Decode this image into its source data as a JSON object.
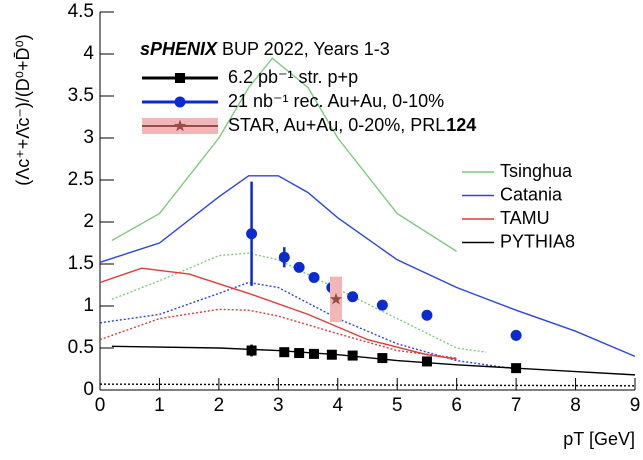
{
  "chart_data": {
    "type": "scatter",
    "title_bold": "sPHENIX",
    "title": "BUP 2022, Years 1-3",
    "x_label": "pT [GeV]",
    "y_label": "(Λc⁺+Λ̄c⁻)/(D⁰+D̄⁰)",
    "xlim": [
      0,
      9
    ],
    "ylim": [
      0,
      4.5
    ],
    "xticks": [
      0,
      1,
      2,
      3,
      4,
      5,
      6,
      7,
      8,
      9
    ],
    "yticks": [
      0,
      0.5,
      1,
      1.5,
      2,
      2.5,
      3,
      3.5,
      4,
      4.5
    ],
    "series": [
      {
        "name": "6.2 pb⁻¹ str. p+p",
        "color": "#000000",
        "marker": "square",
        "x": [
          2.55,
          3.1,
          3.35,
          3.6,
          3.9,
          4.25,
          4.75,
          5.5,
          7.0
        ],
        "values": [
          0.47,
          0.45,
          0.44,
          0.43,
          0.42,
          0.41,
          0.38,
          0.34,
          0.26
        ],
        "errors": [
          0.07,
          null,
          null,
          null,
          null,
          null,
          null,
          null,
          null
        ]
      },
      {
        "name": "21 nb⁻¹ rec. Au+Au, 0-10%",
        "color": "#0a2bd0",
        "marker": "circle",
        "x": [
          2.55,
          3.1,
          3.35,
          3.6,
          3.9,
          4.25,
          4.75,
          5.5,
          7.0
        ],
        "values": [
          1.86,
          1.58,
          1.46,
          1.34,
          1.22,
          1.11,
          1.01,
          0.89,
          0.65
        ],
        "errors": [
          0.62,
          0.12,
          null,
          null,
          null,
          null,
          null,
          null,
          null
        ]
      },
      {
        "name": "STAR, Au+Au, 0-20%, PRL",
        "name_bold": "124",
        "color": "#9b4a4a",
        "box_color": "#f1b6b6",
        "marker": "star",
        "x": [
          3.97
        ],
        "values": [
          1.08
        ],
        "errors": [
          0.27
        ]
      }
    ],
    "models": [
      {
        "name": "Tsinghua",
        "color": "#7fca7f",
        "x": [
          0.2,
          1,
          2,
          2.5,
          2.9,
          3.5,
          4,
          5,
          6
        ],
        "values": [
          1.78,
          2.1,
          3.0,
          3.6,
          3.95,
          3.6,
          3.0,
          2.1,
          1.65
        ],
        "x2": [
          0.2,
          1,
          2,
          2.5,
          3,
          4,
          5,
          6,
          6.5
        ],
        "values2": [
          1.08,
          1.3,
          1.6,
          1.63,
          1.55,
          1.2,
          0.85,
          0.5,
          0.45
        ]
      },
      {
        "name": "Catania",
        "color": "#2a45e0",
        "x": [
          0,
          1,
          2,
          2.5,
          3,
          3.5,
          4,
          5,
          6,
          7,
          8,
          9
        ],
        "values": [
          1.52,
          1.75,
          2.3,
          2.55,
          2.55,
          2.35,
          2.05,
          1.55,
          1.22,
          0.95,
          0.7,
          0.4
        ],
        "x2": [
          0,
          1,
          2,
          2.5,
          3,
          4,
          5,
          6,
          7
        ],
        "values2": [
          0.8,
          0.9,
          1.15,
          1.28,
          1.22,
          0.85,
          0.55,
          0.35,
          0.25
        ]
      },
      {
        "name": "TAMU",
        "color": "#e03a3a",
        "x": [
          0,
          0.7,
          1.5,
          2.5,
          3.5,
          4.5,
          5.5,
          6
        ],
        "values": [
          1.28,
          1.45,
          1.38,
          1.15,
          0.9,
          0.6,
          0.42,
          0.37
        ],
        "x2": [
          0,
          1,
          2,
          2.5,
          3,
          4,
          5,
          6
        ],
        "values2": [
          0.6,
          0.85,
          0.96,
          0.95,
          0.88,
          0.67,
          0.47,
          0.38
        ]
      },
      {
        "name": "PYTHIA8",
        "color": "#000000",
        "x": [
          0.2,
          2,
          3,
          4,
          5,
          6,
          7,
          8,
          9
        ],
        "values": [
          0.52,
          0.5,
          0.47,
          0.42,
          0.35,
          0.3,
          0.26,
          0.22,
          0.18
        ],
        "x2": [
          0,
          9
        ],
        "values2": [
          0.07,
          0.05
        ]
      }
    ]
  }
}
